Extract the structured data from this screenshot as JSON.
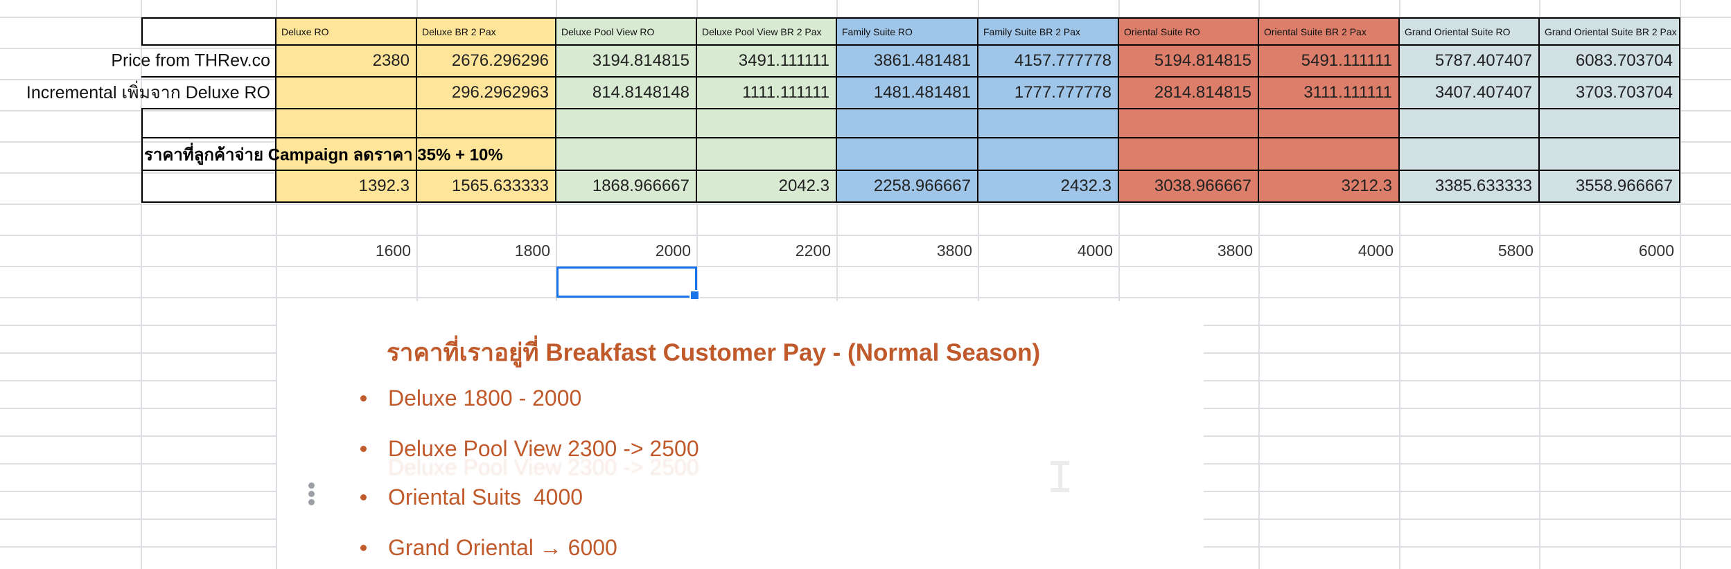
{
  "sheet": {
    "columns": [
      "Deluxe RO",
      "Deluxe BR 2 Pax",
      "Deluxe Pool View RO",
      "Deluxe Pool View BR 2 Pax",
      "Family Suite RO",
      "Family Suite BR 2 Pax",
      "Oriental Suite RO",
      "Oriental Suite BR 2 Pax",
      "Grand Oriental Suite RO",
      "Grand Oriental Suite BR 2 Pax"
    ],
    "rows": [
      {
        "label": "Price from THRev.co",
        "values": [
          "2380",
          "2676.296296",
          "3194.814815",
          "3491.111111",
          "3861.481481",
          "4157.777778",
          "5194.814815",
          "5491.111111",
          "5787.407407",
          "6083.703704"
        ]
      },
      {
        "label": "Incremental เพิ่มจาก Deluxe RO",
        "values": [
          "",
          "296.2962963",
          "814.8148148",
          "1111.111111",
          "1481.481481",
          "1777.777778",
          "2814.814815",
          "3111.111111",
          "3407.407407",
          "3703.703704"
        ]
      },
      {
        "label": "",
        "values": [
          "",
          "",
          "",
          "",
          "",
          "",
          "",
          "",
          "",
          ""
        ]
      },
      {
        "label": "ราคาที่ลูกค้าจ่าย Campaign ลดราคา 35% + 10%",
        "values": [
          "",
          "",
          "",
          "",
          "",
          "",
          "",
          "",
          "",
          ""
        ]
      },
      {
        "label": "",
        "values": [
          "1392.3",
          "1565.633333",
          "1868.966667",
          "2042.3",
          "2258.966667",
          "2432.3",
          "3038.966667",
          "3212.3",
          "3385.633333",
          "3558.966667"
        ]
      }
    ],
    "free_numbers": [
      "1600",
      "1800",
      "2000",
      "2200",
      "3800",
      "4000",
      "3800",
      "4000",
      "5800",
      "6000"
    ]
  },
  "textbox": {
    "title": "ราคาที่เราอยู่ที่ Breakfast Customer Pay - (Normal Season)",
    "bullets": [
      "Deluxe 1800 - 2000",
      "Deluxe Pool View 2300 -> 2500",
      "Oriental Suits  4000",
      "Grand Oriental → 6000"
    ],
    "ghost_line": "Deluxe Pool View 2300 -> 2500"
  },
  "colors": {
    "deluxe_fill": "#ffe599",
    "pool_view_fill": "#d9ead3",
    "family_fill": "#9fc5e8",
    "oriental_fill": "#dd7e6b",
    "grand_fill": "#d0e0e3",
    "text_orange": "#c05a2b",
    "selection_blue": "#1a73e8",
    "gridline": "#dcdee1",
    "cell_border": "#000000"
  }
}
